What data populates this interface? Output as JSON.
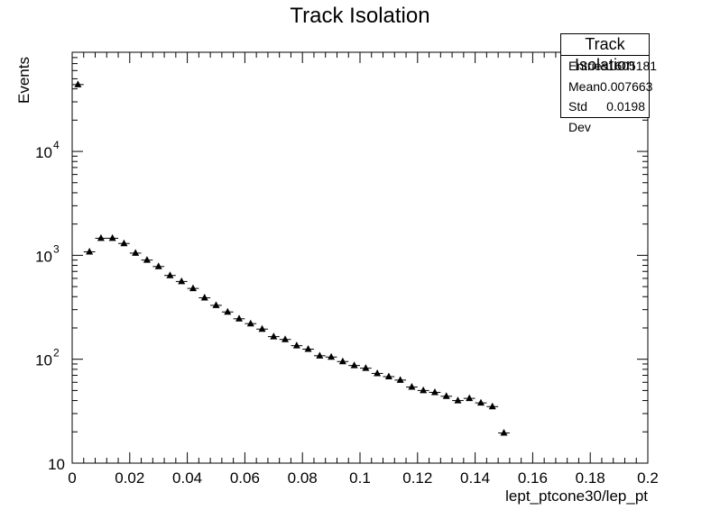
{
  "chart_data": {
    "type": "scatter",
    "title": "Track Isolation",
    "xlabel": "lept_ptcone30/lep_pt",
    "ylabel": "Events",
    "xlim": [
      0,
      0.2
    ],
    "ylim": [
      10,
      90000
    ],
    "yscale": "log",
    "grid": false,
    "legend": "none",
    "marker": "triangle-up",
    "bin_width": 0.004,
    "x_ticks": [
      "0",
      "0.02",
      "0.04",
      "0.06",
      "0.08",
      "0.1",
      "0.12",
      "0.14",
      "0.16",
      "0.18",
      "0.2"
    ],
    "y_ticks": [
      {
        "base": "10",
        "exp": ""
      },
      {
        "base": "10",
        "exp": "2"
      },
      {
        "base": "10",
        "exp": "3"
      },
      {
        "base": "10",
        "exp": "4"
      }
    ],
    "x": [
      0.002,
      0.006,
      0.01,
      0.014,
      0.018,
      0.022,
      0.026,
      0.03,
      0.034,
      0.038,
      0.042,
      0.046,
      0.05,
      0.054,
      0.058,
      0.062,
      0.066,
      0.07,
      0.074,
      0.078,
      0.082,
      0.086,
      0.09,
      0.094,
      0.098,
      0.102,
      0.106,
      0.11,
      0.114,
      0.118,
      0.122,
      0.126,
      0.13,
      0.134,
      0.138,
      0.142,
      0.146,
      0.15
    ],
    "y": [
      44000,
      1080,
      1460,
      1460,
      1300,
      1050,
      900,
      780,
      640,
      560,
      480,
      390,
      330,
      285,
      245,
      220,
      195,
      165,
      155,
      135,
      125,
      108,
      105,
      95,
      87,
      82,
      73,
      68,
      63,
      54,
      50,
      48,
      44,
      40,
      42,
      38,
      35,
      19.5
    ],
    "stats": {
      "title": "Track Isolation",
      "rows": [
        {
          "label": "Entries",
          "value": "1605181"
        },
        {
          "label": "Mean",
          "value": "0.007663"
        },
        {
          "label": "Std Dev",
          "value": "0.0198"
        }
      ]
    }
  }
}
